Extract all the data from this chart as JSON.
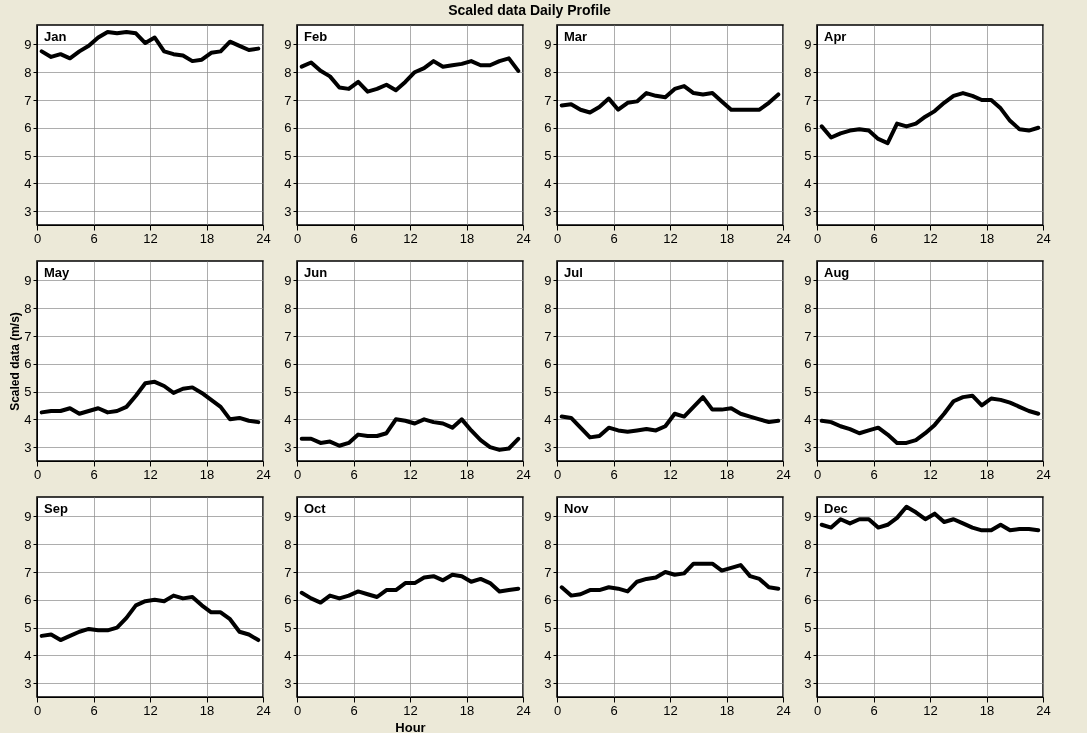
{
  "chart_data": [
    {
      "type": "other",
      "title": "Scaled data Daily Profile"
    },
    {
      "type": "line",
      "title": "Jan",
      "color": "#000000",
      "x": [
        0.5,
        1.5,
        2.5,
        3.5,
        4.5,
        5.5,
        6.5,
        7.5,
        8.5,
        9.5,
        10.5,
        11.5,
        12.5,
        13.5,
        14.5,
        15.5,
        16.5,
        17.5,
        18.5,
        19.5,
        20.5,
        21.5,
        22.5,
        23.5
      ],
      "values": [
        8.75,
        8.55,
        8.65,
        8.5,
        8.75,
        8.95,
        9.25,
        9.45,
        9.4,
        9.45,
        9.4,
        9.05,
        9.25,
        8.75,
        8.65,
        8.6,
        8.4,
        8.45,
        8.7,
        8.75,
        9.1,
        8.95,
        8.8,
        8.85
      ],
      "xlim": [
        0,
        24
      ],
      "ylim": [
        2.5,
        9.7
      ],
      "xticks": [
        0,
        6,
        12,
        18,
        24
      ],
      "yticks": [
        3,
        4,
        5,
        6,
        7,
        8,
        9
      ],
      "grid": true
    },
    {
      "type": "line",
      "title": "Feb",
      "color": "#000000",
      "x": [
        0.5,
        1.5,
        2.5,
        3.5,
        4.5,
        5.5,
        6.5,
        7.5,
        8.5,
        9.5,
        10.5,
        11.5,
        12.5,
        13.5,
        14.5,
        15.5,
        16.5,
        17.5,
        18.5,
        19.5,
        20.5,
        21.5,
        22.5,
        23.5
      ],
      "values": [
        8.2,
        8.35,
        8.05,
        7.85,
        7.45,
        7.4,
        7.65,
        7.3,
        7.4,
        7.55,
        7.35,
        7.65,
        8.0,
        8.15,
        8.4,
        8.2,
        8.25,
        8.3,
        8.4,
        8.25,
        8.25,
        8.4,
        8.5,
        8.05
      ],
      "xlim": [
        0,
        24
      ],
      "ylim": [
        2.5,
        9.7
      ],
      "xticks": [
        0,
        6,
        12,
        18,
        24
      ],
      "yticks": [
        3,
        4,
        5,
        6,
        7,
        8,
        9
      ],
      "grid": true
    },
    {
      "type": "line",
      "title": "Mar",
      "color": "#000000",
      "x": [
        0.5,
        1.5,
        2.5,
        3.5,
        4.5,
        5.5,
        6.5,
        7.5,
        8.5,
        9.5,
        10.5,
        11.5,
        12.5,
        13.5,
        14.5,
        15.5,
        16.5,
        17.5,
        18.5,
        19.5,
        20.5,
        21.5,
        22.5,
        23.5
      ],
      "values": [
        6.8,
        6.85,
        6.65,
        6.55,
        6.75,
        7.05,
        6.65,
        6.9,
        6.95,
        7.25,
        7.15,
        7.1,
        7.4,
        7.5,
        7.25,
        7.2,
        7.25,
        6.95,
        6.65,
        6.65,
        6.65,
        6.65,
        6.9,
        7.2
      ],
      "xlim": [
        0,
        24
      ],
      "ylim": [
        2.5,
        9.7
      ],
      "xticks": [
        0,
        6,
        12,
        18,
        24
      ],
      "yticks": [
        3,
        4,
        5,
        6,
        7,
        8,
        9
      ],
      "grid": true
    },
    {
      "type": "line",
      "title": "Apr",
      "color": "#000000",
      "x": [
        0.5,
        1.5,
        2.5,
        3.5,
        4.5,
        5.5,
        6.5,
        7.5,
        8.5,
        9.5,
        10.5,
        11.5,
        12.5,
        13.5,
        14.5,
        15.5,
        16.5,
        17.5,
        18.5,
        19.5,
        20.5,
        21.5,
        22.5,
        23.5
      ],
      "values": [
        6.05,
        5.65,
        5.8,
        5.9,
        5.95,
        5.9,
        5.6,
        5.45,
        6.15,
        6.05,
        6.15,
        6.4,
        6.6,
        6.9,
        7.15,
        7.25,
        7.15,
        7.0,
        7.0,
        6.7,
        6.25,
        5.95,
        5.9,
        6.0
      ],
      "xlim": [
        0,
        24
      ],
      "ylim": [
        2.5,
        9.7
      ],
      "xticks": [
        0,
        6,
        12,
        18,
        24
      ],
      "yticks": [
        3,
        4,
        5,
        6,
        7,
        8,
        9
      ],
      "grid": true
    },
    {
      "type": "line",
      "title": "May",
      "ylabel": "Scaled data (m/s)",
      "color": "#000000",
      "x": [
        0.5,
        1.5,
        2.5,
        3.5,
        4.5,
        5.5,
        6.5,
        7.5,
        8.5,
        9.5,
        10.5,
        11.5,
        12.5,
        13.5,
        14.5,
        15.5,
        16.5,
        17.5,
        18.5,
        19.5,
        20.5,
        21.5,
        22.5,
        23.5
      ],
      "values": [
        4.25,
        4.3,
        4.3,
        4.4,
        4.2,
        4.3,
        4.4,
        4.25,
        4.3,
        4.45,
        4.85,
        5.3,
        5.35,
        5.2,
        4.95,
        5.1,
        5.15,
        4.95,
        4.7,
        4.45,
        4.0,
        4.05,
        3.95,
        3.9
      ],
      "xlim": [
        0,
        24
      ],
      "ylim": [
        2.5,
        9.7
      ],
      "xticks": [
        0,
        6,
        12,
        18,
        24
      ],
      "yticks": [
        3,
        4,
        5,
        6,
        7,
        8,
        9
      ],
      "grid": true
    },
    {
      "type": "line",
      "title": "Jun",
      "color": "#000000",
      "x": [
        0.5,
        1.5,
        2.5,
        3.5,
        4.5,
        5.5,
        6.5,
        7.5,
        8.5,
        9.5,
        10.5,
        11.5,
        12.5,
        13.5,
        14.5,
        15.5,
        16.5,
        17.5,
        18.5,
        19.5,
        20.5,
        21.5,
        22.5,
        23.5
      ],
      "values": [
        3.3,
        3.3,
        3.15,
        3.2,
        3.05,
        3.15,
        3.45,
        3.4,
        3.4,
        3.5,
        4.0,
        3.95,
        3.85,
        4.0,
        3.9,
        3.85,
        3.7,
        4.0,
        3.6,
        3.25,
        3.0,
        2.9,
        2.95,
        3.3
      ],
      "xlim": [
        0,
        24
      ],
      "ylim": [
        2.5,
        9.7
      ],
      "xticks": [
        0,
        6,
        12,
        18,
        24
      ],
      "yticks": [
        3,
        4,
        5,
        6,
        7,
        8,
        9
      ],
      "grid": true
    },
    {
      "type": "line",
      "title": "Jul",
      "color": "#000000",
      "x": [
        0.5,
        1.5,
        2.5,
        3.5,
        4.5,
        5.5,
        6.5,
        7.5,
        8.5,
        9.5,
        10.5,
        11.5,
        12.5,
        13.5,
        14.5,
        15.5,
        16.5,
        17.5,
        18.5,
        19.5,
        20.5,
        21.5,
        22.5,
        23.5
      ],
      "values": [
        4.1,
        4.05,
        3.7,
        3.35,
        3.4,
        3.7,
        3.6,
        3.55,
        3.6,
        3.65,
        3.6,
        3.75,
        4.2,
        4.1,
        4.45,
        4.8,
        4.35,
        4.35,
        4.4,
        4.2,
        4.1,
        4.0,
        3.9,
        3.95
      ],
      "xlim": [
        0,
        24
      ],
      "ylim": [
        2.5,
        9.7
      ],
      "xticks": [
        0,
        6,
        12,
        18,
        24
      ],
      "yticks": [
        3,
        4,
        5,
        6,
        7,
        8,
        9
      ],
      "grid": true
    },
    {
      "type": "line",
      "title": "Aug",
      "color": "#000000",
      "x": [
        0.5,
        1.5,
        2.5,
        3.5,
        4.5,
        5.5,
        6.5,
        7.5,
        8.5,
        9.5,
        10.5,
        11.5,
        12.5,
        13.5,
        14.5,
        15.5,
        16.5,
        17.5,
        18.5,
        19.5,
        20.5,
        21.5,
        22.5,
        23.5
      ],
      "values": [
        3.95,
        3.9,
        3.75,
        3.65,
        3.5,
        3.6,
        3.7,
        3.45,
        3.15,
        3.15,
        3.25,
        3.5,
        3.8,
        4.2,
        4.65,
        4.8,
        4.85,
        4.5,
        4.75,
        4.7,
        4.6,
        4.45,
        4.3,
        4.2
      ],
      "xlim": [
        0,
        24
      ],
      "ylim": [
        2.5,
        9.7
      ],
      "xticks": [
        0,
        6,
        12,
        18,
        24
      ],
      "yticks": [
        3,
        4,
        5,
        6,
        7,
        8,
        9
      ],
      "grid": true
    },
    {
      "type": "line",
      "title": "Sep",
      "color": "#000000",
      "x": [
        0.5,
        1.5,
        2.5,
        3.5,
        4.5,
        5.5,
        6.5,
        7.5,
        8.5,
        9.5,
        10.5,
        11.5,
        12.5,
        13.5,
        14.5,
        15.5,
        16.5,
        17.5,
        18.5,
        19.5,
        20.5,
        21.5,
        22.5,
        23.5
      ],
      "values": [
        4.7,
        4.75,
        4.55,
        4.7,
        4.85,
        4.95,
        4.9,
        4.9,
        5.0,
        5.35,
        5.8,
        5.95,
        6.0,
        5.95,
        6.15,
        6.05,
        6.1,
        5.8,
        5.55,
        5.55,
        5.3,
        4.85,
        4.75,
        4.55
      ],
      "xlim": [
        0,
        24
      ],
      "ylim": [
        2.5,
        9.7
      ],
      "xticks": [
        0,
        6,
        12,
        18,
        24
      ],
      "yticks": [
        3,
        4,
        5,
        6,
        7,
        8,
        9
      ],
      "grid": true
    },
    {
      "type": "line",
      "title": "Oct",
      "xlabel": "Hour",
      "color": "#000000",
      "x": [
        0.5,
        1.5,
        2.5,
        3.5,
        4.5,
        5.5,
        6.5,
        7.5,
        8.5,
        9.5,
        10.5,
        11.5,
        12.5,
        13.5,
        14.5,
        15.5,
        16.5,
        17.5,
        18.5,
        19.5,
        20.5,
        21.5,
        22.5,
        23.5
      ],
      "values": [
        6.25,
        6.05,
        5.9,
        6.15,
        6.05,
        6.15,
        6.3,
        6.2,
        6.1,
        6.35,
        6.35,
        6.6,
        6.6,
        6.8,
        6.85,
        6.7,
        6.9,
        6.85,
        6.65,
        6.75,
        6.6,
        6.3,
        6.35,
        6.4
      ],
      "xlim": [
        0,
        24
      ],
      "ylim": [
        2.5,
        9.7
      ],
      "xticks": [
        0,
        6,
        12,
        18,
        24
      ],
      "yticks": [
        3,
        4,
        5,
        6,
        7,
        8,
        9
      ],
      "grid": true
    },
    {
      "type": "line",
      "title": "Nov",
      "color": "#000000",
      "x": [
        0.5,
        1.5,
        2.5,
        3.5,
        4.5,
        5.5,
        6.5,
        7.5,
        8.5,
        9.5,
        10.5,
        11.5,
        12.5,
        13.5,
        14.5,
        15.5,
        16.5,
        17.5,
        18.5,
        19.5,
        20.5,
        21.5,
        22.5,
        23.5
      ],
      "values": [
        6.45,
        6.15,
        6.2,
        6.35,
        6.35,
        6.45,
        6.4,
        6.3,
        6.65,
        6.75,
        6.8,
        7.0,
        6.9,
        6.95,
        7.3,
        7.3,
        7.3,
        7.05,
        7.15,
        7.25,
        6.85,
        6.75,
        6.45,
        6.4
      ],
      "xlim": [
        0,
        24
      ],
      "ylim": [
        2.5,
        9.7
      ],
      "xticks": [
        0,
        6,
        12,
        18,
        24
      ],
      "yticks": [
        3,
        4,
        5,
        6,
        7,
        8,
        9
      ],
      "grid": true
    },
    {
      "type": "line",
      "title": "Dec",
      "color": "#000000",
      "x": [
        0.5,
        1.5,
        2.5,
        3.5,
        4.5,
        5.5,
        6.5,
        7.5,
        8.5,
        9.5,
        10.5,
        11.5,
        12.5,
        13.5,
        14.5,
        15.5,
        16.5,
        17.5,
        18.5,
        19.5,
        20.5,
        21.5,
        22.5,
        23.5
      ],
      "values": [
        8.7,
        8.6,
        8.9,
        8.75,
        8.9,
        8.9,
        8.6,
        8.7,
        8.95,
        9.35,
        9.15,
        8.9,
        9.1,
        8.8,
        8.9,
        8.75,
        8.6,
        8.5,
        8.5,
        8.7,
        8.5,
        8.55,
        8.55,
        8.5
      ],
      "xlim": [
        0,
        24
      ],
      "ylim": [
        2.5,
        9.7
      ],
      "xticks": [
        0,
        6,
        12,
        18,
        24
      ],
      "yticks": [
        3,
        4,
        5,
        6,
        7,
        8,
        9
      ],
      "grid": true
    }
  ]
}
